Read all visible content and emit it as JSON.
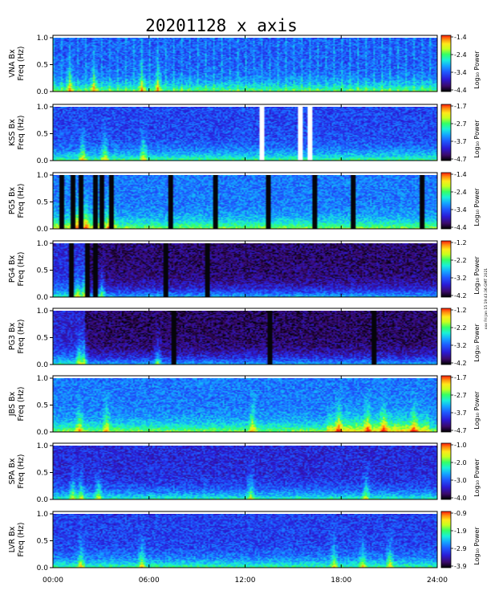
{
  "chart_data": {
    "type": "heatmap",
    "title": "20201128  x axis",
    "side_note": "xxx Fri Jan 15 19:43:36 GMT 2021",
    "colormap": [
      "#000000",
      "#3b0a6b",
      "#2a1bd6",
      "#1e5bff",
      "#14a8ff",
      "#19f0d8",
      "#33ff66",
      "#c8ff1e",
      "#ffe81a",
      "#ff8c0f",
      "#ff1a0a"
    ],
    "x_axis": {
      "label": "",
      "range": [
        "00:00",
        "24:00"
      ],
      "ticks": [
        "00:00",
        "06:00",
        "12:00",
        "18:00",
        "24:00"
      ]
    },
    "y_axis_ticks": [
      "0.0",
      "0.5",
      "1.0"
    ],
    "y_range_hz": [
      0,
      1.0
    ],
    "colorbar_label": "Log₁₀ Power",
    "panels": [
      {
        "ylabel": "VNA Bx\nFreq (Hz)",
        "colorbar_ticks": [
          "-1.4",
          "-2.4",
          "-3.4",
          "-4.4"
        ],
        "bg_level": 0.3,
        "vertical_stripes": "periodic",
        "data_gaps_h": [],
        "bright_events_h": [
          1.0,
          2.5,
          5.5,
          6.5
        ]
      },
      {
        "ylabel": "KSS Bx\nFreq (Hz)",
        "colorbar_ticks": [
          "-1.7",
          "-2.7",
          "-3.7",
          "-4.7"
        ],
        "bg_level": 0.27,
        "vertical_stripes": "none",
        "data_gaps_h": [
          12.95,
          15.45,
          15.95
        ],
        "bright_events_h": [
          1.8,
          3.2,
          5.6
        ]
      },
      {
        "ylabel": "PG5 Bx\nFreq (Hz)",
        "colorbar_ticks": [
          "-1.4",
          "-2.4",
          "-3.4",
          "-4.4"
        ],
        "bg_level": 0.34,
        "vertical_stripes": "gaps",
        "data_gaps_h": [
          0.5,
          1.2,
          1.7,
          2.6,
          3.0,
          3.6,
          7.3,
          10.1,
          13.4,
          16.3,
          18.7,
          23.0
        ],
        "bright_events_h": [
          1.5,
          2.0,
          3.5
        ]
      },
      {
        "ylabel": "PG4 Bx\nFreq (Hz)",
        "colorbar_ticks": [
          "-1.2",
          "-2.2",
          "-3.2",
          "-4.2"
        ],
        "bg_level": 0.1,
        "vertical_stripes": "gaps",
        "data_gaps_h": [
          1.1,
          2.1,
          2.6,
          7.0,
          9.6
        ],
        "bright_events_h": [
          1.5,
          1.9,
          3.0
        ]
      },
      {
        "ylabel": "PG3 Bx\nFreq (Hz)",
        "colorbar_ticks": [
          "-1.2",
          "-2.2",
          "-3.2",
          "-4.2"
        ],
        "bg_level": 0.09,
        "vertical_stripes": "gaps",
        "data_gaps_h": [
          7.5,
          13.5,
          20.0
        ],
        "bright_events_h": [
          1.6,
          1.9,
          6.5
        ]
      },
      {
        "ylabel": "JBS Bx\nFreq (Hz)",
        "colorbar_ticks": [
          "-1.7",
          "-2.7",
          "-3.7",
          "-4.7"
        ],
        "bg_level": 0.34,
        "vertical_stripes": "none",
        "data_gaps_h": [],
        "bright_events_h": [
          1.6,
          3.3,
          12.4,
          17.8,
          19.6,
          20.6,
          22.5
        ]
      },
      {
        "ylabel": "SPA Bx\nFreq (Hz)",
        "colorbar_ticks": [
          "-1.0",
          "-2.0",
          "-3.0",
          "-4.0"
        ],
        "bg_level": 0.22,
        "vertical_stripes": "none",
        "data_gaps_h": [],
        "bright_events_h": [
          1.2,
          1.7,
          2.8,
          12.3,
          19.5
        ]
      },
      {
        "ylabel": "LVR Bx\nFreq (Hz)",
        "colorbar_ticks": [
          "-0.9",
          "-1.9",
          "-2.9",
          "-3.9"
        ],
        "bg_level": 0.26,
        "vertical_stripes": "none",
        "data_gaps_h": [],
        "bright_events_h": [
          1.7,
          5.5,
          17.5,
          19.3,
          21.0
        ]
      }
    ]
  }
}
